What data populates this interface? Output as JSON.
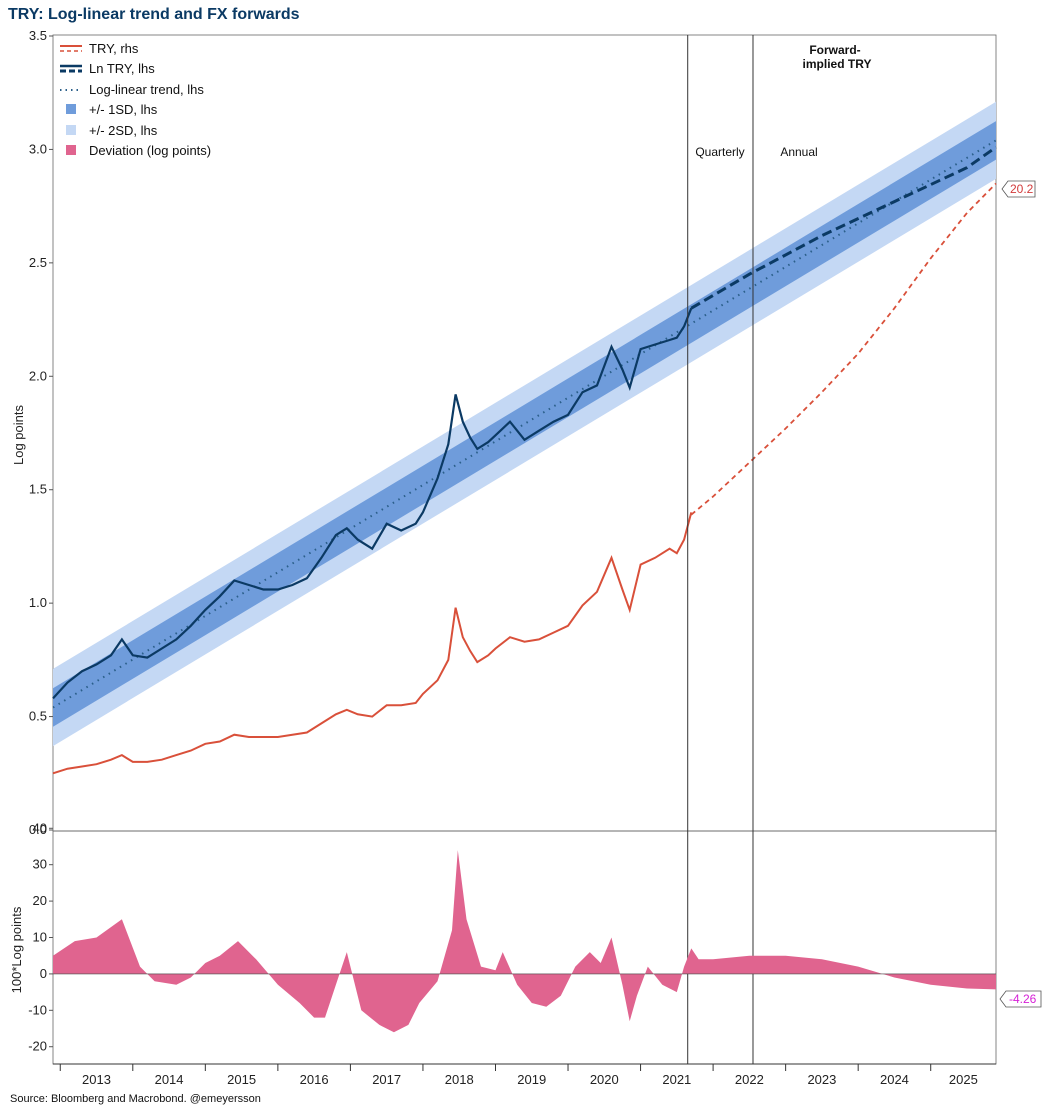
{
  "title": "TRY: Log-linear trend and FX forwards",
  "source": "Source: Bloomberg and Macrobond. @emeyersson",
  "colors": {
    "try_line": "#d9503a",
    "ln_try_line": "#0b3a64",
    "trend_line": "#2b5f8a",
    "band_1sd": "#6f9cdb",
    "band_2sd": "#c4d8f4",
    "deviation": "#e0648f",
    "forward_callout": "#d23b3b",
    "deviation_callout": "#d61fd6"
  },
  "annotations": {
    "forward_header": [
      "Forward-",
      "implied TRY"
    ],
    "quarterly": "Quarterly",
    "annual": "Annual",
    "end_try_value": "20.2",
    "end_deviation_value": "-4.26"
  },
  "chart_data": [
    {
      "type": "line",
      "title": "TRY: Log-linear trend and FX forwards",
      "ylabel": "Log points",
      "ylim": [
        0,
        3.5
      ],
      "yticks": [
        "0.0",
        "0.5",
        "1.0",
        "1.5",
        "2.0",
        "2.5",
        "3.0",
        "3.5"
      ],
      "ytick_values": [
        0,
        0.5,
        1.0,
        1.5,
        2.0,
        2.5,
        3.0,
        3.5
      ],
      "xlim": [
        2012.9,
        2025.9
      ],
      "x_tick_labels": [
        "2013",
        "2014",
        "2015",
        "2016",
        "2017",
        "2018",
        "2019",
        "2020",
        "2021",
        "2022",
        "2023",
        "2024",
        "2025"
      ],
      "vertical_lines": [
        {
          "x": 2021.65,
          "label": "Quarterly"
        },
        {
          "x": 2022.55,
          "label": "Annual"
        }
      ],
      "legend": [
        {
          "key": "try",
          "label": "TRY, rhs"
        },
        {
          "key": "ln_try",
          "label": "Ln TRY, lhs"
        },
        {
          "key": "trend",
          "label": "Log-linear trend, lhs"
        },
        {
          "key": "band1",
          "label": "+/- 1SD, lhs"
        },
        {
          "key": "band2",
          "label": "+/- 2SD, lhs"
        },
        {
          "key": "deviation",
          "label": "Deviation (log points)"
        }
      ],
      "trend": {
        "x": [
          2012.9,
          2025.9
        ],
        "y": [
          0.54,
          3.04
        ]
      },
      "band_1sd_halfwidth": 0.085,
      "band_2sd_halfwidth": 0.17,
      "series": [
        {
          "name": "Ln TRY, lhs",
          "x": [
            2012.9,
            2013.1,
            2013.3,
            2013.5,
            2013.7,
            2013.85,
            2014.0,
            2014.2,
            2014.4,
            2014.6,
            2014.8,
            2015.0,
            2015.2,
            2015.4,
            2015.6,
            2015.8,
            2016.0,
            2016.2,
            2016.4,
            2016.6,
            2016.8,
            2016.95,
            2017.1,
            2017.3,
            2017.5,
            2017.7,
            2017.9,
            2018.0,
            2018.2,
            2018.35,
            2018.45,
            2018.55,
            2018.65,
            2018.75,
            2018.9,
            2019.0,
            2019.2,
            2019.4,
            2019.6,
            2019.8,
            2020.0,
            2020.2,
            2020.4,
            2020.6,
            2020.75,
            2020.85,
            2021.0,
            2021.2,
            2021.4,
            2021.5,
            2021.6,
            2021.7
          ],
          "y": [
            0.58,
            0.65,
            0.7,
            0.73,
            0.77,
            0.84,
            0.77,
            0.76,
            0.8,
            0.84,
            0.9,
            0.97,
            1.03,
            1.1,
            1.08,
            1.06,
            1.06,
            1.08,
            1.11,
            1.2,
            1.3,
            1.33,
            1.28,
            1.24,
            1.35,
            1.32,
            1.35,
            1.4,
            1.55,
            1.7,
            1.92,
            1.8,
            1.73,
            1.68,
            1.71,
            1.74,
            1.8,
            1.72,
            1.76,
            1.8,
            1.83,
            1.93,
            1.96,
            2.13,
            2.03,
            1.95,
            2.12,
            2.14,
            2.16,
            2.17,
            2.22,
            2.3
          ]
        },
        {
          "name": "Ln TRY, forward-implied",
          "x": [
            2021.7,
            2022.5,
            2023.5,
            2024.5,
            2025.5,
            2025.9
          ],
          "y": [
            2.3,
            2.45,
            2.62,
            2.77,
            2.92,
            3.01
          ]
        },
        {
          "name": "TRY, rhs",
          "x": [
            2012.9,
            2013.1,
            2013.3,
            2013.5,
            2013.7,
            2013.85,
            2014.0,
            2014.2,
            2014.4,
            2014.6,
            2014.8,
            2015.0,
            2015.2,
            2015.4,
            2015.6,
            2015.8,
            2016.0,
            2016.2,
            2016.4,
            2016.6,
            2016.8,
            2016.95,
            2017.1,
            2017.3,
            2017.5,
            2017.7,
            2017.9,
            2018.0,
            2018.2,
            2018.35,
            2018.45,
            2018.55,
            2018.65,
            2018.75,
            2018.9,
            2019.0,
            2019.2,
            2019.4,
            2019.6,
            2019.8,
            2020.0,
            2020.2,
            2020.4,
            2020.6,
            2020.75,
            2020.85,
            2021.0,
            2021.2,
            2021.4,
            2021.5,
            2021.6,
            2021.7
          ],
          "y": [
            0.25,
            0.27,
            0.28,
            0.29,
            0.31,
            0.33,
            0.3,
            0.3,
            0.31,
            0.33,
            0.35,
            0.38,
            0.39,
            0.42,
            0.41,
            0.41,
            0.41,
            0.42,
            0.43,
            0.47,
            0.51,
            0.53,
            0.51,
            0.5,
            0.55,
            0.55,
            0.56,
            0.6,
            0.66,
            0.75,
            0.98,
            0.85,
            0.79,
            0.74,
            0.77,
            0.8,
            0.85,
            0.83,
            0.84,
            0.87,
            0.9,
            0.99,
            1.05,
            1.2,
            1.06,
            0.97,
            1.17,
            1.2,
            1.24,
            1.22,
            1.28,
            1.4
          ]
        },
        {
          "name": "TRY forward-implied, rhs",
          "x": [
            2021.7,
            2022.0,
            2022.5,
            2023.0,
            2023.5,
            2024.0,
            2024.5,
            2025.0,
            2025.5,
            2025.9
          ],
          "y": [
            1.39,
            1.47,
            1.62,
            1.77,
            1.93,
            2.1,
            2.3,
            2.52,
            2.72,
            2.85
          ]
        }
      ]
    },
    {
      "type": "area",
      "title": "Deviation (log points)",
      "ylabel": "100*Log points",
      "ylim": [
        -22,
        42
      ],
      "yticks": [
        "-20",
        "-10",
        "0",
        "10",
        "20",
        "30",
        "40"
      ],
      "ytick_values": [
        -20,
        -10,
        0,
        10,
        20,
        30,
        40
      ],
      "xlim": [
        2012.9,
        2025.9
      ],
      "series": [
        {
          "name": "Deviation (log points)",
          "x": [
            2012.9,
            2013.2,
            2013.5,
            2013.85,
            2014.1,
            2014.3,
            2014.6,
            2014.8,
            2015.0,
            2015.2,
            2015.45,
            2015.7,
            2016.0,
            2016.3,
            2016.5,
            2016.65,
            2016.8,
            2016.95,
            2017.15,
            2017.4,
            2017.6,
            2017.8,
            2017.95,
            2018.2,
            2018.4,
            2018.48,
            2018.6,
            2018.8,
            2019.0,
            2019.1,
            2019.3,
            2019.5,
            2019.7,
            2019.9,
            2020.1,
            2020.3,
            2020.45,
            2020.6,
            2020.75,
            2020.85,
            2020.95,
            2021.1,
            2021.3,
            2021.5,
            2021.6,
            2021.7,
            2021.8,
            2022.0,
            2022.5,
            2023.0,
            2023.5,
            2024.0,
            2024.5,
            2025.0,
            2025.5,
            2025.9
          ],
          "y": [
            5,
            9,
            10,
            15,
            2,
            -2,
            -3,
            -1,
            3,
            5,
            9,
            4,
            -3,
            -8,
            -12,
            -12,
            -3,
            6,
            -10,
            -14,
            -16,
            -14,
            -8,
            -2,
            12,
            34,
            15,
            2,
            1,
            6,
            -3,
            -8,
            -9,
            -6,
            2,
            6,
            3,
            10,
            -3,
            -13,
            -6,
            2,
            -3,
            -5,
            2,
            7,
            4,
            4,
            5,
            5,
            4,
            2,
            -1,
            -3,
            -4,
            -4.26
          ]
        }
      ]
    }
  ]
}
